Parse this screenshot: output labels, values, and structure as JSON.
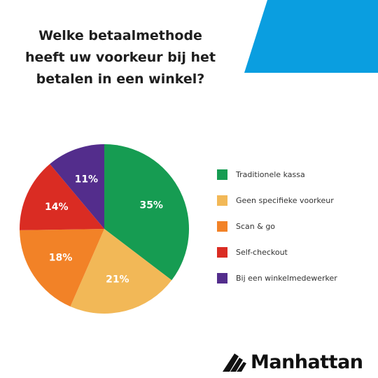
{
  "title_lines": [
    "Welke betaalmethode",
    "heeft uw voorkeur bij het",
    "betalen in een winkel?"
  ],
  "brand": {
    "name": "Manhattan"
  },
  "colors": {
    "accent": "#0a9ee0",
    "text": "#1e1e1e"
  },
  "chart_data": {
    "type": "pie",
    "title": "Welke betaalmethode heeft uw voorkeur bij het betalen in een winkel?",
    "unit": "%",
    "start": "12 o'clock, clockwise",
    "legend_position": "right",
    "slices": [
      {
        "label": "Traditionele kassa",
        "value": 35,
        "value_label": "35%",
        "color": "#169c52"
      },
      {
        "label": "Geen specifieke voorkeur",
        "value": 21,
        "value_label": "21%",
        "color": "#f2b857"
      },
      {
        "label": "Scan & go",
        "value": 18,
        "value_label": "18%",
        "color": "#f28227"
      },
      {
        "label": "Self-checkout",
        "value": 14,
        "value_label": "14%",
        "color": "#da2c23"
      },
      {
        "label": "Bij een winkelmedewerker",
        "value": 11,
        "value_label": "11%",
        "color": "#532d8c"
      }
    ]
  }
}
